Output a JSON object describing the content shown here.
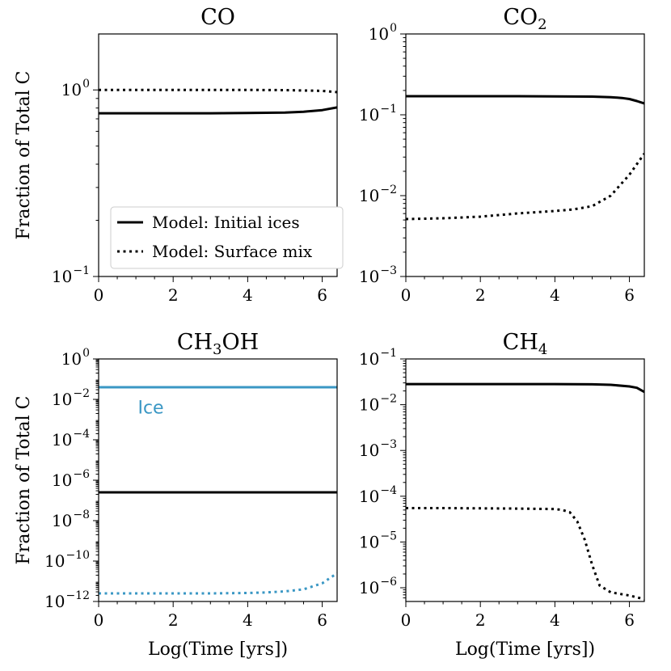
{
  "figure": {
    "shared_ylabel": "Fraction of Total C",
    "shared_xlabel": "Log(Time [yrs])"
  },
  "legend": {
    "solid_label": "Model: Initial ices",
    "dotted_label": "Model: Surface mix"
  },
  "colors": {
    "model": "#000000",
    "ice": "#3a97c4"
  },
  "chart_data": [
    {
      "id": "co",
      "type": "line",
      "title_base": "CO",
      "title_sub": "",
      "title_tail": "",
      "xlabel": "",
      "ylabel": "Fraction of Total C",
      "xlim": [
        0,
        6.4
      ],
      "ylim_log10": [
        -1,
        0.3
      ],
      "yscale": "log",
      "x_ticks": [
        0,
        2,
        4,
        6
      ],
      "x_tick_labels": [
        "0",
        "2",
        "4",
        "6"
      ],
      "y_ticks_log10": [
        -1,
        0
      ],
      "y_tick_labels": [
        [
          "10",
          "−1"
        ],
        [
          "10",
          "0"
        ]
      ],
      "series": [
        {
          "name": "Model: Initial ices",
          "style": "solid",
          "color": "#000000",
          "x": [
            0,
            1,
            2,
            3,
            4,
            5,
            5.5,
            6.0,
            6.4
          ],
          "log10_y": [
            -0.125,
            -0.125,
            -0.125,
            -0.125,
            -0.124,
            -0.121,
            -0.117,
            -0.108,
            -0.094
          ]
        },
        {
          "name": "Model: Surface mix",
          "style": "dotted",
          "color": "#000000",
          "x": [
            0,
            1,
            2,
            3,
            4,
            5,
            6.0,
            6.4
          ],
          "log10_y": [
            0,
            0,
            0,
            0,
            0,
            -0.001,
            -0.005,
            -0.012
          ]
        }
      ],
      "annotations": [],
      "legend": true
    },
    {
      "id": "co2",
      "type": "line",
      "title_base": "CO",
      "title_sub": "2",
      "title_tail": "",
      "xlabel": "",
      "ylabel": "",
      "xlim": [
        0,
        6.4
      ],
      "ylim_log10": [
        -3,
        0
      ],
      "yscale": "log",
      "x_ticks": [
        0,
        2,
        4,
        6
      ],
      "x_tick_labels": [
        "0",
        "2",
        "4",
        "6"
      ],
      "y_ticks_log10": [
        -3,
        -2,
        -1,
        0
      ],
      "y_tick_labels": [
        [
          "10",
          "−3"
        ],
        [
          "10",
          "−2"
        ],
        [
          "10",
          "−1"
        ],
        [
          "10",
          "0"
        ]
      ],
      "series": [
        {
          "name": "Model: Initial ices",
          "style": "solid",
          "color": "#000000",
          "x": [
            0,
            1,
            2,
            3,
            4,
            5,
            5.5,
            5.8,
            6.0,
            6.2,
            6.4
          ],
          "log10_y": [
            -0.77,
            -0.77,
            -0.77,
            -0.77,
            -0.772,
            -0.775,
            -0.782,
            -0.792,
            -0.805,
            -0.83,
            -0.86
          ]
        },
        {
          "name": "Model: Surface mix",
          "style": "dotted",
          "color": "#000000",
          "x": [
            0,
            0.5,
            1,
            2,
            3,
            4,
            4.5,
            5,
            5.5,
            6.0,
            6.4
          ],
          "log10_y": [
            -2.29,
            -2.285,
            -2.28,
            -2.26,
            -2.22,
            -2.19,
            -2.17,
            -2.13,
            -2.0,
            -1.74,
            -1.48
          ]
        }
      ],
      "annotations": [],
      "legend": false
    },
    {
      "id": "ch3oh",
      "type": "line",
      "title_base": "CH",
      "title_sub": "3",
      "title_tail": "OH",
      "xlabel": "Log(Time [yrs])",
      "ylabel": "Fraction of Total C",
      "xlim": [
        0,
        6.4
      ],
      "ylim_log10": [
        -12,
        0
      ],
      "yscale": "log",
      "x_ticks": [
        0,
        2,
        4,
        6
      ],
      "x_tick_labels": [
        "0",
        "2",
        "4",
        "6"
      ],
      "y_ticks_log10": [
        -12,
        -10,
        -8,
        -6,
        -4,
        -2,
        0
      ],
      "y_tick_labels": [
        [
          "10",
          "−12"
        ],
        [
          "10",
          "−10"
        ],
        [
          "10",
          "−8"
        ],
        [
          "10",
          "−6"
        ],
        [
          "10",
          "−4"
        ],
        [
          "10",
          "−2"
        ],
        [
          "10",
          "0"
        ]
      ],
      "series": [
        {
          "name": "Ice",
          "style": "solid",
          "color": "#3a97c4",
          "x": [
            0,
            6.4
          ],
          "log10_y": [
            -1.4,
            -1.4
          ]
        },
        {
          "name": "Model: Initial ices",
          "style": "solid",
          "color": "#000000",
          "x": [
            0,
            6.4
          ],
          "log10_y": [
            -6.6,
            -6.6
          ]
        },
        {
          "name": "Ice (surface mix)",
          "style": "dotted",
          "color": "#3a97c4",
          "x": [
            0,
            1,
            2,
            3,
            4,
            4.5,
            5,
            5.5,
            6.0,
            6.4
          ],
          "log10_y": [
            -11.6,
            -11.6,
            -11.6,
            -11.6,
            -11.58,
            -11.55,
            -11.5,
            -11.4,
            -11.1,
            -10.6
          ]
        }
      ],
      "annotations": [
        {
          "text": "Ice",
          "x": 1.4,
          "log10_y": -2.7,
          "color": "#3a97c4"
        }
      ],
      "legend": false
    },
    {
      "id": "ch4",
      "type": "line",
      "title_base": "CH",
      "title_sub": "4",
      "title_tail": "",
      "xlabel": "Log(Time [yrs])",
      "ylabel": "",
      "xlim": [
        0,
        6.4
      ],
      "ylim_log10": [
        -6.3,
        -1
      ],
      "yscale": "log",
      "x_ticks": [
        0,
        2,
        4,
        6
      ],
      "x_tick_labels": [
        "0",
        "2",
        "4",
        "6"
      ],
      "y_ticks_log10": [
        -6,
        -5,
        -4,
        -3,
        -2,
        -1
      ],
      "y_tick_labels": [
        [
          "10",
          "−6"
        ],
        [
          "10",
          "−5"
        ],
        [
          "10",
          "−4"
        ],
        [
          "10",
          "−3"
        ],
        [
          "10",
          "−2"
        ],
        [
          "10",
          "−1"
        ]
      ],
      "series": [
        {
          "name": "Model: Initial ices",
          "style": "solid",
          "color": "#000000",
          "x": [
            0,
            1,
            2,
            3,
            4,
            5,
            5.5,
            6.0,
            6.2,
            6.4
          ],
          "log10_y": [
            -1.55,
            -1.55,
            -1.55,
            -1.55,
            -1.55,
            -1.555,
            -1.565,
            -1.6,
            -1.63,
            -1.72
          ]
        },
        {
          "name": "Model: Surface mix",
          "style": "dotted",
          "color": "#000000",
          "x": [
            0,
            1,
            2,
            3,
            4,
            4.2,
            4.4,
            4.6,
            4.8,
            5.0,
            5.2,
            5.5,
            6.0,
            6.4
          ],
          "log10_y": [
            -4.26,
            -4.26,
            -4.265,
            -4.27,
            -4.28,
            -4.3,
            -4.35,
            -4.55,
            -4.95,
            -5.5,
            -5.95,
            -6.1,
            -6.17,
            -6.25
          ]
        }
      ],
      "annotations": [],
      "legend": false
    }
  ]
}
